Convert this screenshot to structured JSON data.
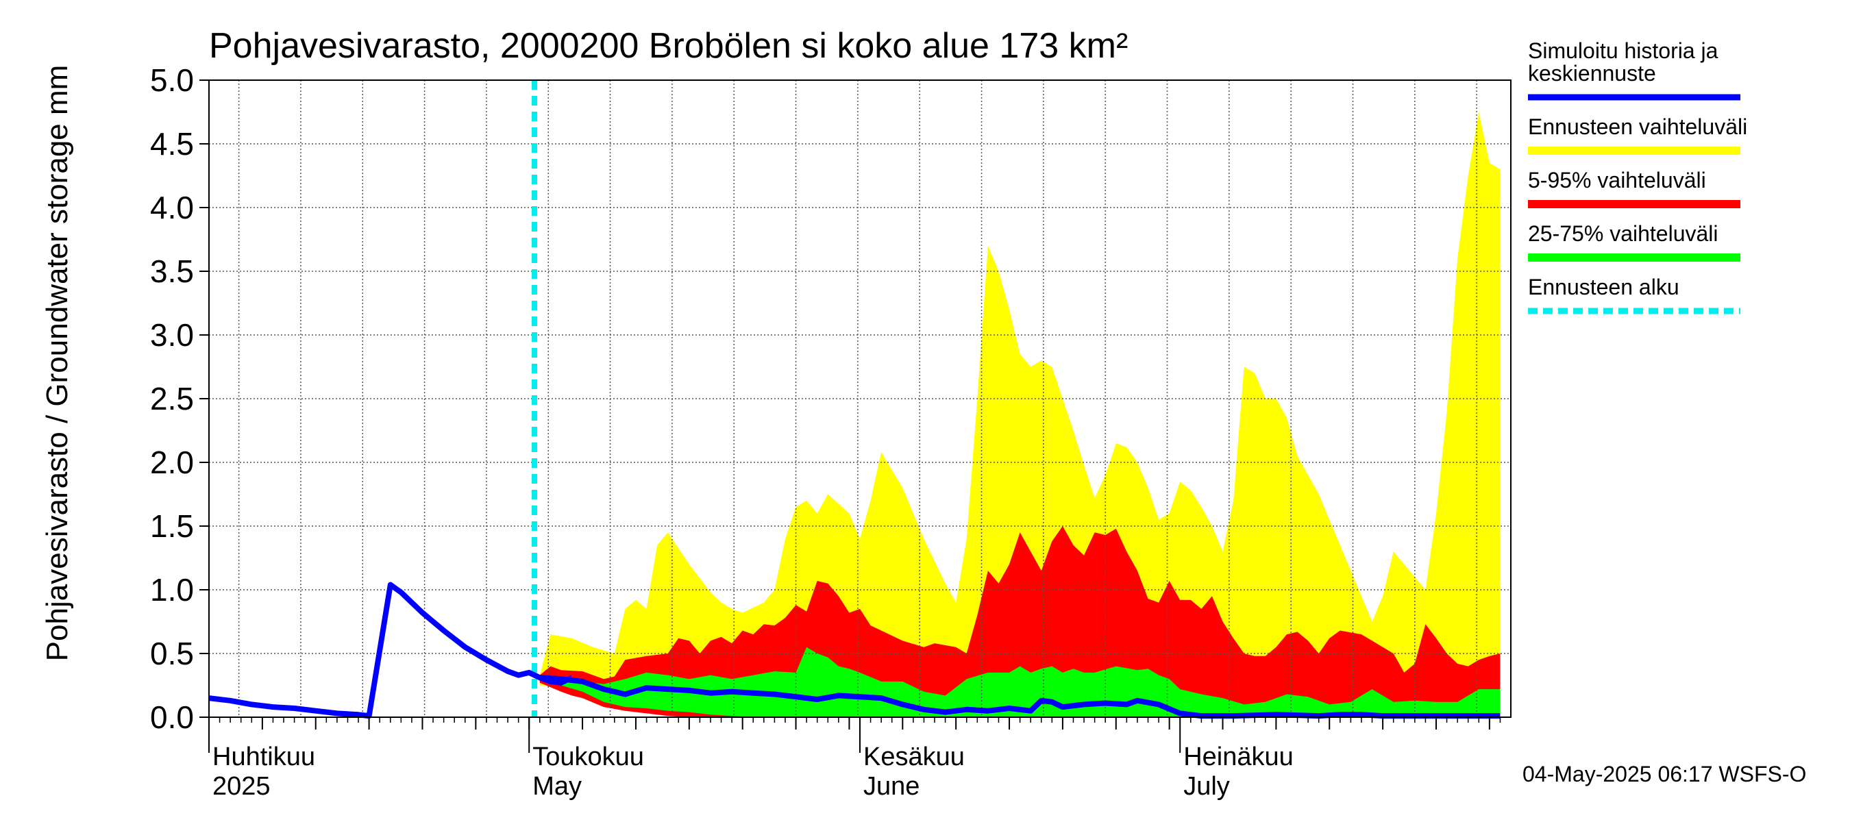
{
  "chart_data": {
    "type": "area",
    "title": "Pohjavesivarasto, 2000200 Brobölen si koko alue 173 km²",
    "ylabel": "Pohjavesivarasto / Groundwater storage   mm",
    "ylim": [
      0,
      5.0
    ],
    "yticks": [
      "0.0",
      "0.5",
      "1.0",
      "1.5",
      "2.0",
      "2.5",
      "3.0",
      "3.5",
      "4.0",
      "4.5",
      "5.0"
    ],
    "x_start": "2025-04-01",
    "x_days": 122,
    "month_labels": [
      {
        "fi": "Huhtikuu",
        "en": "2025",
        "day": 0
      },
      {
        "fi": "Toukokuu",
        "en": "May",
        "day": 30
      },
      {
        "fi": "Kesäkuu",
        "en": "June",
        "day": 61
      },
      {
        "fi": "Heinäkuu",
        "en": "July",
        "day": 91
      }
    ],
    "forecast_start_day": 30.5,
    "history": {
      "name": "Simuloitu historia ja keskiennuste",
      "color": "#0000ff",
      "points": [
        [
          0,
          0.15
        ],
        [
          2,
          0.13
        ],
        [
          4,
          0.1
        ],
        [
          6,
          0.08
        ],
        [
          8,
          0.07
        ],
        [
          10,
          0.05
        ],
        [
          12,
          0.03
        ],
        [
          14,
          0.02
        ],
        [
          15,
          0.01
        ],
        [
          17,
          1.04
        ],
        [
          18,
          0.98
        ],
        [
          20,
          0.82
        ],
        [
          22,
          0.68
        ],
        [
          24,
          0.55
        ],
        [
          26,
          0.45
        ],
        [
          28,
          0.36
        ],
        [
          29,
          0.33
        ],
        [
          30,
          0.35
        ],
        [
          31,
          0.31
        ],
        [
          32,
          0.28
        ],
        [
          33,
          0.27
        ],
        [
          34,
          0.31
        ]
      ]
    },
    "median": [
      [
        31,
        0.31
      ],
      [
        33,
        0.3
      ],
      [
        35,
        0.28
      ],
      [
        37,
        0.22
      ],
      [
        39,
        0.18
      ],
      [
        41,
        0.23
      ],
      [
        43,
        0.22
      ],
      [
        45,
        0.21
      ],
      [
        47,
        0.19
      ],
      [
        49,
        0.2
      ],
      [
        51,
        0.19
      ],
      [
        53,
        0.18
      ],
      [
        55,
        0.16
      ],
      [
        57,
        0.14
      ],
      [
        59,
        0.17
      ],
      [
        61,
        0.16
      ],
      [
        63,
        0.15
      ],
      [
        65,
        0.1
      ],
      [
        67,
        0.06
      ],
      [
        69,
        0.04
      ],
      [
        71,
        0.06
      ],
      [
        73,
        0.05
      ],
      [
        75,
        0.07
      ],
      [
        77,
        0.05
      ],
      [
        78,
        0.13
      ],
      [
        79,
        0.12
      ],
      [
        80,
        0.08
      ],
      [
        82,
        0.1
      ],
      [
        84,
        0.11
      ],
      [
        86,
        0.1
      ],
      [
        87,
        0.13
      ],
      [
        89,
        0.1
      ],
      [
        91,
        0.03
      ],
      [
        93,
        0.01
      ],
      [
        96,
        0.01
      ],
      [
        100,
        0.02
      ],
      [
        104,
        0.01
      ],
      [
        106,
        0.02
      ],
      [
        108,
        0.02
      ],
      [
        110,
        0.01
      ],
      [
        114,
        0.01
      ],
      [
        118,
        0.01
      ],
      [
        121,
        0.01
      ]
    ],
    "range_full": {
      "name": "Ennusteen vaihteluväli",
      "color": "#ffff00",
      "upper": [
        [
          31,
          0.33
        ],
        [
          32,
          0.65
        ],
        [
          34,
          0.62
        ],
        [
          36,
          0.55
        ],
        [
          38,
          0.5
        ],
        [
          39,
          0.85
        ],
        [
          40,
          0.92
        ],
        [
          41,
          0.85
        ],
        [
          42,
          1.35
        ],
        [
          43,
          1.45
        ],
        [
          45,
          1.2
        ],
        [
          47,
          0.98
        ],
        [
          48,
          0.9
        ],
        [
          49,
          0.85
        ],
        [
          50,
          0.82
        ],
        [
          52,
          0.9
        ],
        [
          53,
          1.0
        ],
        [
          54,
          1.4
        ],
        [
          55,
          1.65
        ],
        [
          56,
          1.7
        ],
        [
          57,
          1.6
        ],
        [
          58,
          1.75
        ],
        [
          60,
          1.6
        ],
        [
          61,
          1.4
        ],
        [
          62,
          1.7
        ],
        [
          63,
          2.08
        ],
        [
          65,
          1.8
        ],
        [
          67,
          1.4
        ],
        [
          69,
          1.05
        ],
        [
          70,
          0.9
        ],
        [
          71,
          1.4
        ],
        [
          72,
          2.5
        ],
        [
          73,
          3.7
        ],
        [
          74,
          3.5
        ],
        [
          75,
          3.2
        ],
        [
          76,
          2.85
        ],
        [
          77,
          2.75
        ],
        [
          78,
          2.8
        ],
        [
          79,
          2.75
        ],
        [
          80,
          2.5
        ],
        [
          81,
          2.25
        ],
        [
          82,
          1.98
        ],
        [
          83,
          1.72
        ],
        [
          84,
          1.9
        ],
        [
          85,
          2.15
        ],
        [
          86,
          2.12
        ],
        [
          87,
          2.0
        ],
        [
          88,
          1.8
        ],
        [
          89,
          1.55
        ],
        [
          90,
          1.6
        ],
        [
          91,
          1.85
        ],
        [
          92,
          1.78
        ],
        [
          93,
          1.65
        ],
        [
          94,
          1.5
        ],
        [
          95,
          1.3
        ],
        [
          96,
          1.7
        ],
        [
          97,
          2.75
        ],
        [
          98,
          2.7
        ],
        [
          99,
          2.5
        ],
        [
          100,
          2.5
        ],
        [
          101,
          2.35
        ],
        [
          102,
          2.05
        ],
        [
          104,
          1.75
        ],
        [
          106,
          1.35
        ],
        [
          108,
          0.95
        ],
        [
          109,
          0.75
        ],
        [
          110,
          0.95
        ],
        [
          111,
          1.3
        ],
        [
          112,
          1.2
        ],
        [
          113,
          1.1
        ],
        [
          114,
          1.0
        ],
        [
          115,
          1.6
        ],
        [
          116,
          2.4
        ],
        [
          117,
          3.6
        ],
        [
          118,
          4.25
        ],
        [
          119,
          4.75
        ],
        [
          120,
          4.35
        ],
        [
          121,
          4.3
        ]
      ],
      "lower": [
        [
          31,
          0.25
        ],
        [
          121,
          0.0
        ]
      ]
    },
    "range_5_95": {
      "name": "5-95% vaihteluväli",
      "color": "#ff0000",
      "upper": [
        [
          31,
          0.33
        ],
        [
          32,
          0.4
        ],
        [
          33,
          0.37
        ],
        [
          35,
          0.36
        ],
        [
          37,
          0.3
        ],
        [
          38,
          0.32
        ],
        [
          39,
          0.45
        ],
        [
          41,
          0.48
        ],
        [
          43,
          0.5
        ],
        [
          44,
          0.62
        ],
        [
          45,
          0.6
        ],
        [
          46,
          0.5
        ],
        [
          47,
          0.6
        ],
        [
          48,
          0.63
        ],
        [
          49,
          0.58
        ],
        [
          50,
          0.68
        ],
        [
          51,
          0.65
        ],
        [
          52,
          0.73
        ],
        [
          53,
          0.72
        ],
        [
          54,
          0.78
        ],
        [
          55,
          0.88
        ],
        [
          56,
          0.83
        ],
        [
          57,
          1.07
        ],
        [
          58,
          1.05
        ],
        [
          59,
          0.95
        ],
        [
          60,
          0.82
        ],
        [
          61,
          0.85
        ],
        [
          62,
          0.72
        ],
        [
          63,
          0.68
        ],
        [
          65,
          0.6
        ],
        [
          67,
          0.55
        ],
        [
          68,
          0.58
        ],
        [
          70,
          0.55
        ],
        [
          71,
          0.5
        ],
        [
          72,
          0.8
        ],
        [
          73,
          1.15
        ],
        [
          74,
          1.05
        ],
        [
          75,
          1.2
        ],
        [
          76,
          1.45
        ],
        [
          77,
          1.3
        ],
        [
          78,
          1.15
        ],
        [
          79,
          1.38
        ],
        [
          80,
          1.5
        ],
        [
          81,
          1.35
        ],
        [
          82,
          1.27
        ],
        [
          83,
          1.45
        ],
        [
          84,
          1.43
        ],
        [
          85,
          1.48
        ],
        [
          86,
          1.3
        ],
        [
          87,
          1.15
        ],
        [
          88,
          0.93
        ],
        [
          89,
          0.9
        ],
        [
          90,
          1.07
        ],
        [
          91,
          0.92
        ],
        [
          92,
          0.92
        ],
        [
          93,
          0.85
        ],
        [
          94,
          0.95
        ],
        [
          95,
          0.75
        ],
        [
          96,
          0.62
        ],
        [
          97,
          0.5
        ],
        [
          98,
          0.48
        ],
        [
          99,
          0.48
        ],
        [
          100,
          0.55
        ],
        [
          101,
          0.65
        ],
        [
          102,
          0.67
        ],
        [
          103,
          0.6
        ],
        [
          104,
          0.5
        ],
        [
          105,
          0.62
        ],
        [
          106,
          0.68
        ],
        [
          108,
          0.65
        ],
        [
          109,
          0.6
        ],
        [
          110,
          0.55
        ],
        [
          111,
          0.5
        ],
        [
          112,
          0.35
        ],
        [
          113,
          0.42
        ],
        [
          114,
          0.73
        ],
        [
          115,
          0.62
        ],
        [
          116,
          0.5
        ],
        [
          117,
          0.42
        ],
        [
          118,
          0.4
        ],
        [
          119,
          0.45
        ],
        [
          120,
          0.48
        ],
        [
          121,
          0.5
        ]
      ],
      "lower": [
        [
          31,
          0.27
        ],
        [
          33,
          0.2
        ],
        [
          34,
          0.17
        ],
        [
          35,
          0.15
        ],
        [
          37,
          0.08
        ],
        [
          39,
          0.05
        ],
        [
          41,
          0.03
        ],
        [
          43,
          0.01
        ],
        [
          45,
          0.0
        ],
        [
          121,
          0.0
        ]
      ]
    },
    "range_25_75": {
      "name": "25-75% vaihteluväli",
      "color": "#00ff00",
      "upper": [
        [
          31,
          0.31
        ],
        [
          33,
          0.3
        ],
        [
          35,
          0.28
        ],
        [
          37,
          0.26
        ],
        [
          39,
          0.3
        ],
        [
          41,
          0.35
        ],
        [
          43,
          0.33
        ],
        [
          45,
          0.3
        ],
        [
          47,
          0.33
        ],
        [
          49,
          0.3
        ],
        [
          51,
          0.33
        ],
        [
          53,
          0.36
        ],
        [
          55,
          0.35
        ],
        [
          56,
          0.55
        ],
        [
          57,
          0.5
        ],
        [
          58,
          0.47
        ],
        [
          59,
          0.4
        ],
        [
          60,
          0.38
        ],
        [
          61,
          0.35
        ],
        [
          63,
          0.28
        ],
        [
          65,
          0.28
        ],
        [
          67,
          0.2
        ],
        [
          69,
          0.17
        ],
        [
          71,
          0.3
        ],
        [
          73,
          0.35
        ],
        [
          75,
          0.35
        ],
        [
          76,
          0.4
        ],
        [
          77,
          0.35
        ],
        [
          78,
          0.38
        ],
        [
          79,
          0.4
        ],
        [
          80,
          0.35
        ],
        [
          81,
          0.38
        ],
        [
          82,
          0.35
        ],
        [
          83,
          0.35
        ],
        [
          85,
          0.4
        ],
        [
          87,
          0.37
        ],
        [
          88,
          0.38
        ],
        [
          89,
          0.33
        ],
        [
          90,
          0.3
        ],
        [
          91,
          0.22
        ],
        [
          93,
          0.18
        ],
        [
          95,
          0.15
        ],
        [
          97,
          0.1
        ],
        [
          99,
          0.12
        ],
        [
          101,
          0.18
        ],
        [
          103,
          0.16
        ],
        [
          105,
          0.1
        ],
        [
          107,
          0.12
        ],
        [
          109,
          0.22
        ],
        [
          111,
          0.12
        ],
        [
          113,
          0.13
        ],
        [
          115,
          0.12
        ],
        [
          117,
          0.12
        ],
        [
          119,
          0.22
        ],
        [
          121,
          0.22
        ]
      ],
      "lower": [
        [
          31,
          0.29
        ],
        [
          33,
          0.25
        ],
        [
          35,
          0.2
        ],
        [
          37,
          0.12
        ],
        [
          39,
          0.08
        ],
        [
          41,
          0.07
        ],
        [
          43,
          0.05
        ],
        [
          45,
          0.04
        ],
        [
          47,
          0.02
        ],
        [
          49,
          0.01
        ],
        [
          51,
          0.0
        ],
        [
          121,
          0.0
        ]
      ]
    },
    "forecast_start": {
      "name": "Ennusteen alku",
      "color": "#00eeee"
    },
    "footer": "04-May-2025 06:17 WSFS-O"
  }
}
